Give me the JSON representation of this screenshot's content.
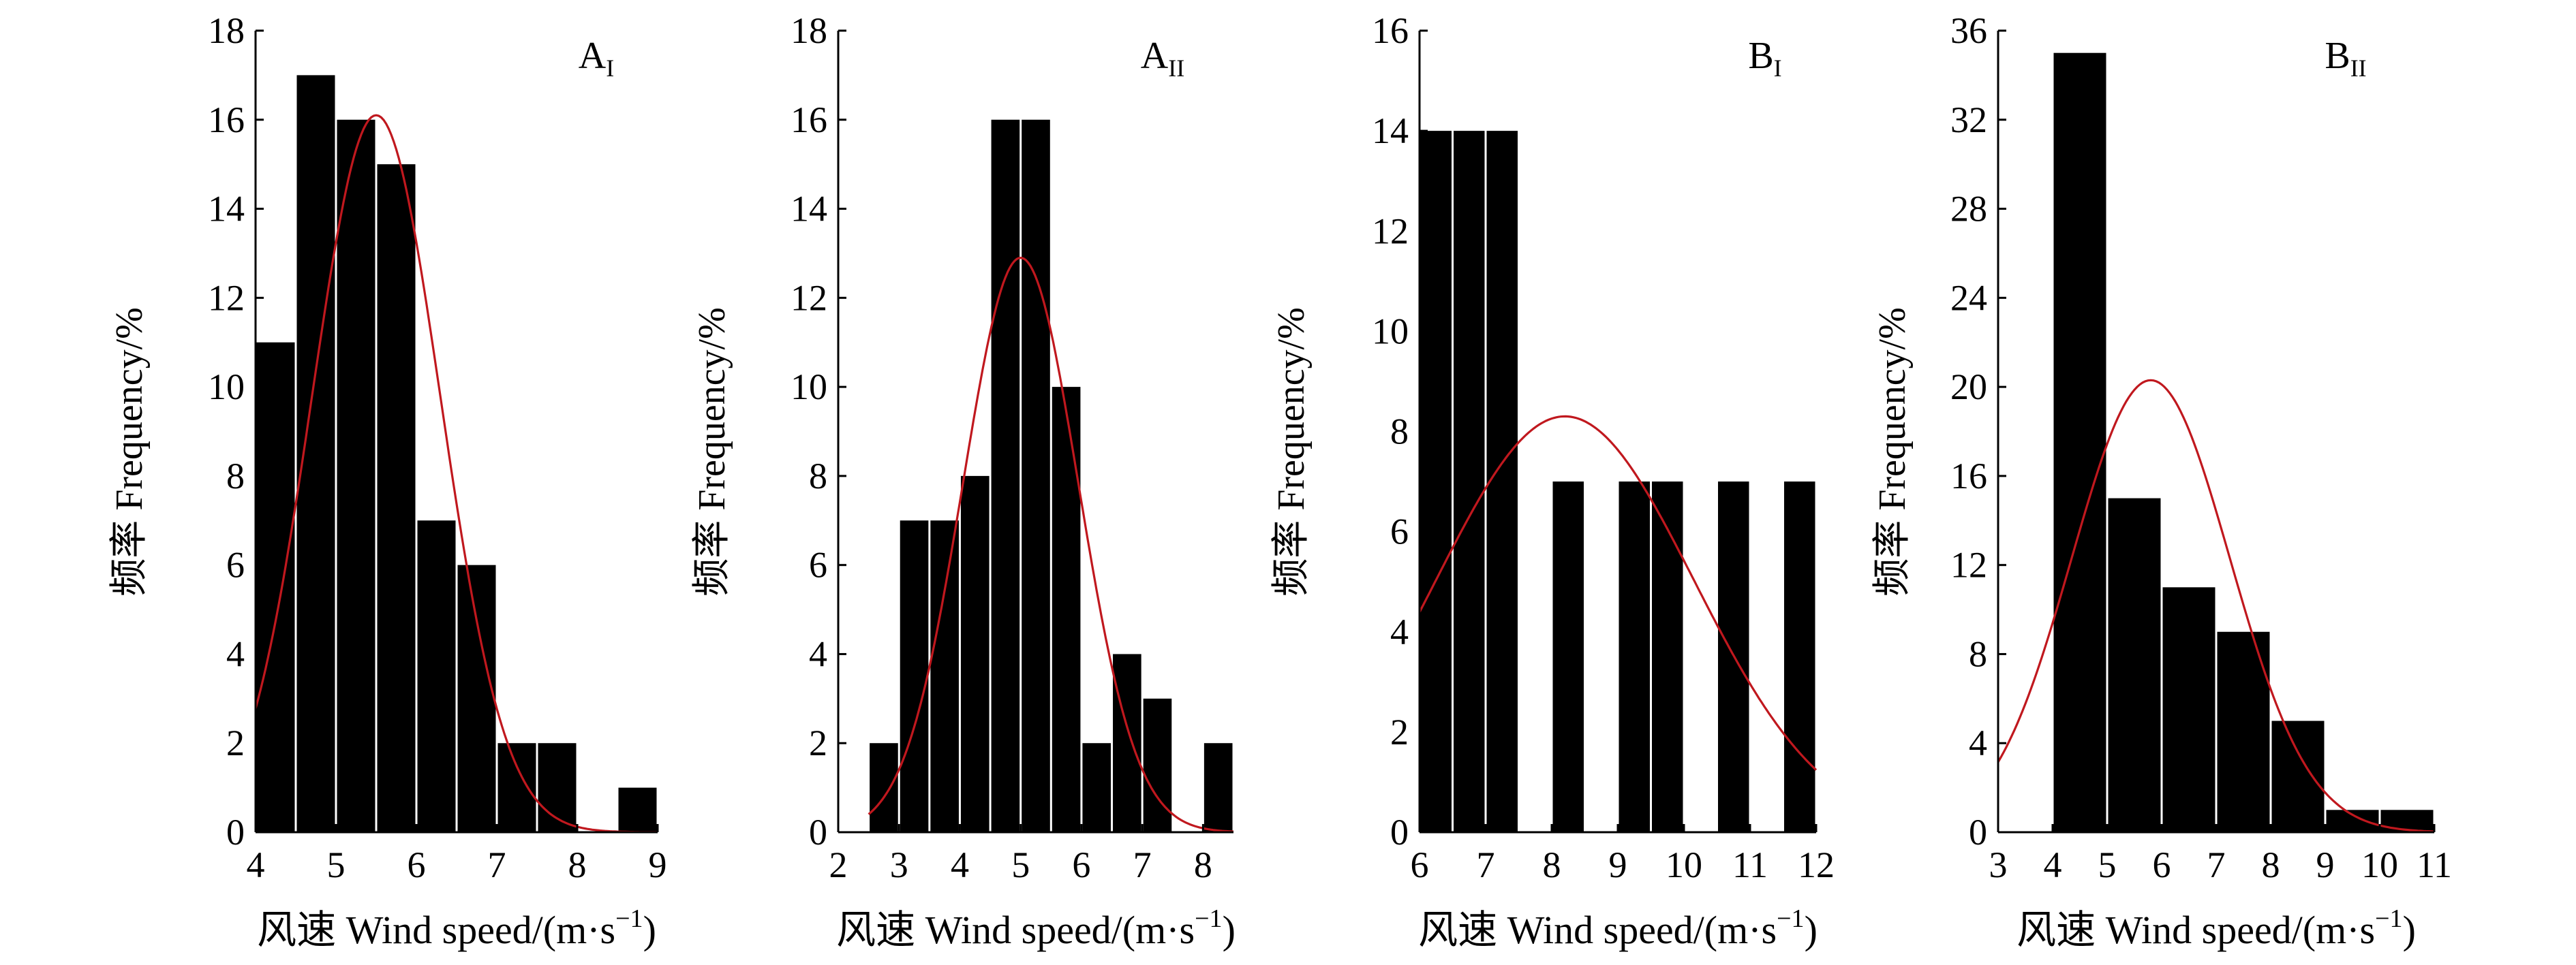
{
  "figure": {
    "background": "#ffffff",
    "bar_color": "#000000",
    "curve_color": "#c0181e",
    "axis_color": "#000000"
  },
  "chart_data": [
    {
      "type": "bar",
      "panel_title": {
        "main": "A",
        "sub": "I"
      },
      "xlabel": {
        "prefix": "风速 Wind speed/(m·s",
        "sup": "−1",
        "suffix": ")"
      },
      "ylabel": "频率 Frequency/%",
      "xlim": [
        4,
        9
      ],
      "ylim": [
        0,
        18
      ],
      "xticks": [
        4,
        5,
        6,
        7,
        8,
        9
      ],
      "xtick_labels": [
        "4",
        "5",
        "6",
        "7",
        "8",
        "9"
      ],
      "yticks": [
        0,
        2,
        4,
        6,
        8,
        10,
        12,
        14,
        16,
        18
      ],
      "ytick_labels": [
        "0",
        "2",
        "4",
        "6",
        "8",
        "10",
        "12",
        "14",
        "16",
        "18"
      ],
      "bin_width": 0.5,
      "bins": [
        {
          "start": 4.0,
          "value": 11
        },
        {
          "start": 4.5,
          "value": 17
        },
        {
          "start": 5.0,
          "value": 16
        },
        {
          "start": 5.5,
          "value": 15
        },
        {
          "start": 6.0,
          "value": 7
        },
        {
          "start": 6.5,
          "value": 6
        },
        {
          "start": 7.0,
          "value": 2
        },
        {
          "start": 7.5,
          "value": 2
        },
        {
          "start": 8.5,
          "value": 1
        }
      ],
      "fit_curve": {
        "type": "normal",
        "mean": 5.5,
        "sd": 0.8,
        "peak": 16.1,
        "x_range": [
          4,
          9
        ]
      }
    },
    {
      "type": "bar",
      "panel_title": {
        "main": "A",
        "sub": "II"
      },
      "xlabel": {
        "prefix": "风速 Wind speed/(m·s",
        "sup": "−1",
        "suffix": ")"
      },
      "ylabel": "频率 Frequency/%",
      "xlim": [
        2,
        8.5
      ],
      "ylim": [
        0,
        18
      ],
      "xticks": [
        2,
        3,
        4,
        5,
        6,
        7,
        8
      ],
      "xtick_labels": [
        "2",
        "3",
        "4",
        "5",
        "6",
        "7",
        "8"
      ],
      "yticks": [
        0,
        2,
        4,
        6,
        8,
        10,
        12,
        14,
        16,
        18
      ],
      "ytick_labels": [
        "0",
        "2",
        "4",
        "6",
        "8",
        "10",
        "12",
        "14",
        "16",
        "18"
      ],
      "bin_width": 0.5,
      "bins": [
        {
          "start": 2.5,
          "value": 2
        },
        {
          "start": 3.0,
          "value": 7
        },
        {
          "start": 3.5,
          "value": 7
        },
        {
          "start": 4.0,
          "value": 8
        },
        {
          "start": 4.5,
          "value": 16
        },
        {
          "start": 5.0,
          "value": 16
        },
        {
          "start": 5.5,
          "value": 10
        },
        {
          "start": 6.0,
          "value": 2
        },
        {
          "start": 6.5,
          "value": 4
        },
        {
          "start": 7.0,
          "value": 3
        },
        {
          "start": 8.0,
          "value": 2
        }
      ],
      "fit_curve": {
        "type": "normal",
        "mean": 5.0,
        "sd": 0.95,
        "peak": 12.9,
        "x_range": [
          2.5,
          8.5
        ]
      }
    },
    {
      "type": "bar",
      "panel_title": {
        "main": "B",
        "sub": "I"
      },
      "xlabel": {
        "prefix": "风速 Wind speed/(m·s",
        "sup": "−1",
        "suffix": ")"
      },
      "ylabel": "频率 Frequency/%",
      "xlim": [
        6,
        12
      ],
      "ylim": [
        0,
        16
      ],
      "xticks": [
        6,
        7,
        8,
        9,
        10,
        11,
        12
      ],
      "xtick_labels": [
        "6",
        "7",
        "8",
        "9",
        "10",
        "11",
        "12"
      ],
      "yticks": [
        0,
        2,
        4,
        6,
        8,
        10,
        12,
        14,
        16
      ],
      "ytick_labels": [
        "0",
        "2",
        "4",
        "6",
        "8",
        "10",
        "12",
        "14",
        "16"
      ],
      "bin_width": 0.5,
      "bins": [
        {
          "start": 6.0,
          "value": 14
        },
        {
          "start": 6.5,
          "value": 14
        },
        {
          "start": 7.0,
          "value": 14
        },
        {
          "start": 8.0,
          "value": 7
        },
        {
          "start": 9.0,
          "value": 7
        },
        {
          "start": 9.5,
          "value": 7
        },
        {
          "start": 10.5,
          "value": 7
        },
        {
          "start": 11.5,
          "value": 7
        }
      ],
      "fit_curve": {
        "type": "normal",
        "mean": 8.2,
        "sd": 1.95,
        "peak": 8.3,
        "x_range": [
          6,
          12
        ]
      }
    },
    {
      "type": "bar",
      "panel_title": {
        "main": "B",
        "sub": "II"
      },
      "xlabel": {
        "prefix": "风速 Wind speed/(m·s",
        "sup": "−1",
        "suffix": ")"
      },
      "ylabel": "频率 Frequency/%",
      "xlim": [
        3,
        11
      ],
      "ylim": [
        0,
        36
      ],
      "xticks": [
        3,
        4,
        5,
        6,
        7,
        8,
        9,
        10,
        11
      ],
      "xtick_labels": [
        "3",
        "4",
        "5",
        "6",
        "7",
        "8",
        "9",
        "10",
        "11"
      ],
      "yticks": [
        0,
        4,
        8,
        12,
        16,
        20,
        24,
        28,
        32,
        36
      ],
      "ytick_labels": [
        "0",
        "4",
        "8",
        "12",
        "16",
        "20",
        "24",
        "28",
        "32",
        "36"
      ],
      "bin_width": 1,
      "bins": [
        {
          "start": 4,
          "value": 35
        },
        {
          "start": 5,
          "value": 15
        },
        {
          "start": 6,
          "value": 11
        },
        {
          "start": 7,
          "value": 9
        },
        {
          "start": 8,
          "value": 5
        },
        {
          "start": 9,
          "value": 1
        },
        {
          "start": 10,
          "value": 1
        }
      ],
      "fit_curve": {
        "type": "normal",
        "mean": 5.8,
        "sd": 1.45,
        "peak": 20.3,
        "x_range": [
          3,
          11
        ]
      }
    }
  ]
}
